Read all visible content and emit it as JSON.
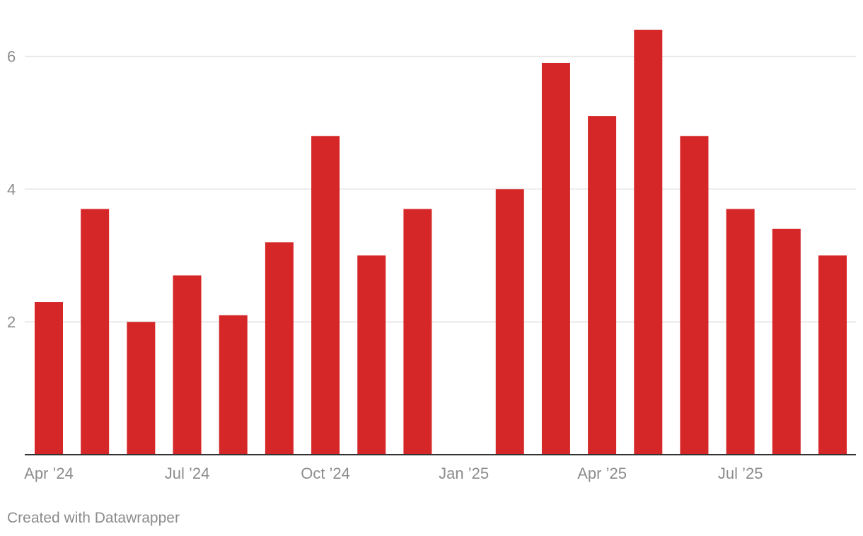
{
  "chart_data": {
    "type": "bar",
    "title": "",
    "xlabel": "",
    "ylabel": "",
    "categories": [
      "Apr '24",
      "May '24",
      "Jun '24",
      "Jul '24",
      "Aug '24",
      "Sep '24",
      "Oct '24",
      "Nov '24",
      "Dec '24",
      "Jan '25",
      "Feb '25",
      "Mar '25",
      "Apr '25",
      "May '25",
      "Jun '25",
      "Jul '25",
      "Aug '25",
      "Sep '25"
    ],
    "values": [
      2.3,
      3.7,
      2.0,
      2.7,
      2.1,
      3.2,
      4.8,
      3.0,
      3.7,
      null,
      4.0,
      5.9,
      5.1,
      6.4,
      4.8,
      3.7,
      3.4,
      3.0
    ],
    "ylim": [
      0,
      6.5
    ],
    "y_ticks": [
      {
        "value": 2,
        "label": "2"
      },
      {
        "value": 4,
        "label": "4"
      },
      {
        "value": 6,
        "label": "6"
      }
    ],
    "x_ticks": [
      {
        "index": 0,
        "label": "Apr ’24"
      },
      {
        "index": 3,
        "label": "Jul ’24"
      },
      {
        "index": 6,
        "label": "Oct ’24"
      },
      {
        "index": 9,
        "label": "Jan ’25"
      },
      {
        "index": 12,
        "label": "Apr ’25"
      },
      {
        "index": 15,
        "label": "Jul ’25"
      }
    ],
    "grid": true,
    "colors": {
      "bar": "#d62728"
    }
  },
  "footer": {
    "credit": "Created with Datawrapper"
  }
}
